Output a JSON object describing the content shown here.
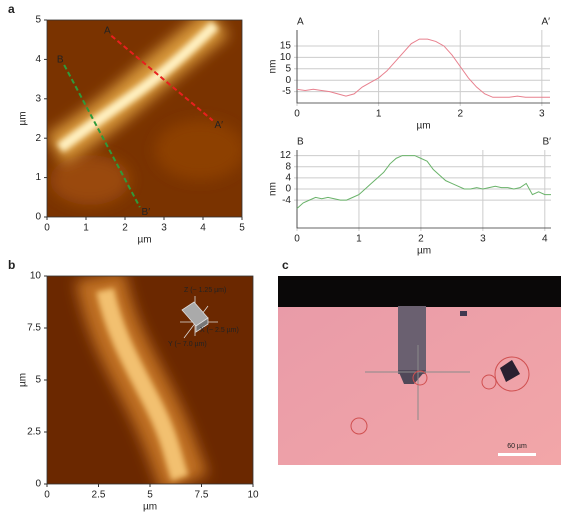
{
  "chart_data": [
    {
      "type": "image",
      "panel": "a",
      "xlabel": "µm",
      "ylabel": "µm",
      "xlim": [
        0,
        5
      ],
      "ylim": [
        0,
        5
      ],
      "xticks": [
        0,
        1,
        2,
        3,
        4,
        5
      ],
      "yticks": [
        0,
        1,
        2,
        3,
        4,
        5
      ],
      "cuts": [
        {
          "start": "A",
          "end": "A′",
          "color": "#e8201e",
          "x": [
            1.65,
            4.25
          ],
          "y": [
            4.6,
            2.45
          ]
        },
        {
          "start": "B",
          "end": "B′",
          "color": "#2f9a3a",
          "x": [
            0.44,
            2.38
          ],
          "y": [
            3.86,
            0.25
          ]
        }
      ]
    },
    {
      "type": "line",
      "xlabel": "µm",
      "ylabel": "nm",
      "start": "A",
      "end": "A′",
      "label_color": "#e8201e",
      "color": "#e8808e",
      "xlim": [
        0,
        3.1
      ],
      "ylim": [
        -10,
        22
      ],
      "xticks": [
        0,
        1,
        2,
        3
      ],
      "yticks": [
        -5,
        0,
        5,
        10,
        15
      ],
      "grid": true,
      "x": [
        0,
        0.1,
        0.2,
        0.3,
        0.4,
        0.5,
        0.6,
        0.7,
        0.8,
        0.9,
        1.0,
        1.1,
        1.2,
        1.3,
        1.4,
        1.5,
        1.6,
        1.7,
        1.8,
        1.9,
        2.0,
        2.1,
        2.2,
        2.3,
        2.4,
        2.5,
        2.6,
        2.7,
        2.8,
        2.9,
        3.0,
        3.1
      ],
      "values": [
        -4,
        -4.5,
        -4,
        -4.5,
        -5,
        -6,
        -7,
        -6,
        -3,
        -1,
        1,
        4,
        8,
        12,
        16,
        18,
        18,
        17,
        15,
        11,
        6,
        1,
        -3,
        -6,
        -7.5,
        -7.5,
        -7.5,
        -7,
        -7.5,
        -7.5,
        -7.5,
        -7.5
      ]
    },
    {
      "type": "line",
      "xlabel": "µm",
      "ylabel": "nm",
      "start": "B",
      "end": "B′",
      "label_color": "#2f9a3a",
      "color": "#6ab36a",
      "xlim": [
        0,
        4.1
      ],
      "ylim": [
        -14,
        14
      ],
      "xticks": [
        0,
        1,
        2,
        3,
        4
      ],
      "yticks": [
        -4,
        0,
        4,
        8,
        12
      ],
      "grid": true,
      "x": [
        0,
        0.1,
        0.2,
        0.3,
        0.4,
        0.5,
        0.6,
        0.7,
        0.8,
        0.9,
        1.0,
        1.1,
        1.2,
        1.3,
        1.4,
        1.5,
        1.6,
        1.7,
        1.8,
        1.9,
        2.0,
        2.1,
        2.2,
        2.3,
        2.4,
        2.5,
        2.6,
        2.7,
        2.8,
        2.9,
        3.0,
        3.1,
        3.2,
        3.3,
        3.4,
        3.5,
        3.6,
        3.7,
        3.8,
        3.9,
        4.0,
        4.1
      ],
      "values": [
        -7,
        -5,
        -4,
        -3,
        -3.5,
        -3,
        -3.5,
        -4,
        -4,
        -3,
        -2,
        0,
        2,
        4,
        6,
        9,
        11,
        12,
        12,
        12,
        11,
        10,
        7,
        5,
        3,
        2,
        1,
        0,
        0,
        0.5,
        0,
        0.5,
        1,
        0.5,
        0.5,
        0,
        0.5,
        2,
        -2,
        -1,
        -2,
        -2
      ]
    },
    {
      "type": "image",
      "panel": "b",
      "xlabel": "µm",
      "ylabel": "µm",
      "xlim": [
        0,
        10
      ],
      "ylim": [
        0,
        10
      ],
      "xticks": [
        0,
        2.5,
        5,
        7.5,
        10
      ],
      "yticks": [
        0,
        2.5,
        5,
        7.5,
        10
      ],
      "annotations": [
        "Z (~ 1.25 µm)",
        "X (~ 2.5 µm)",
        "Y (~ 7.0 µm)"
      ]
    },
    {
      "type": "photo",
      "panel": "c",
      "scale_bar": "60 µm"
    }
  ]
}
